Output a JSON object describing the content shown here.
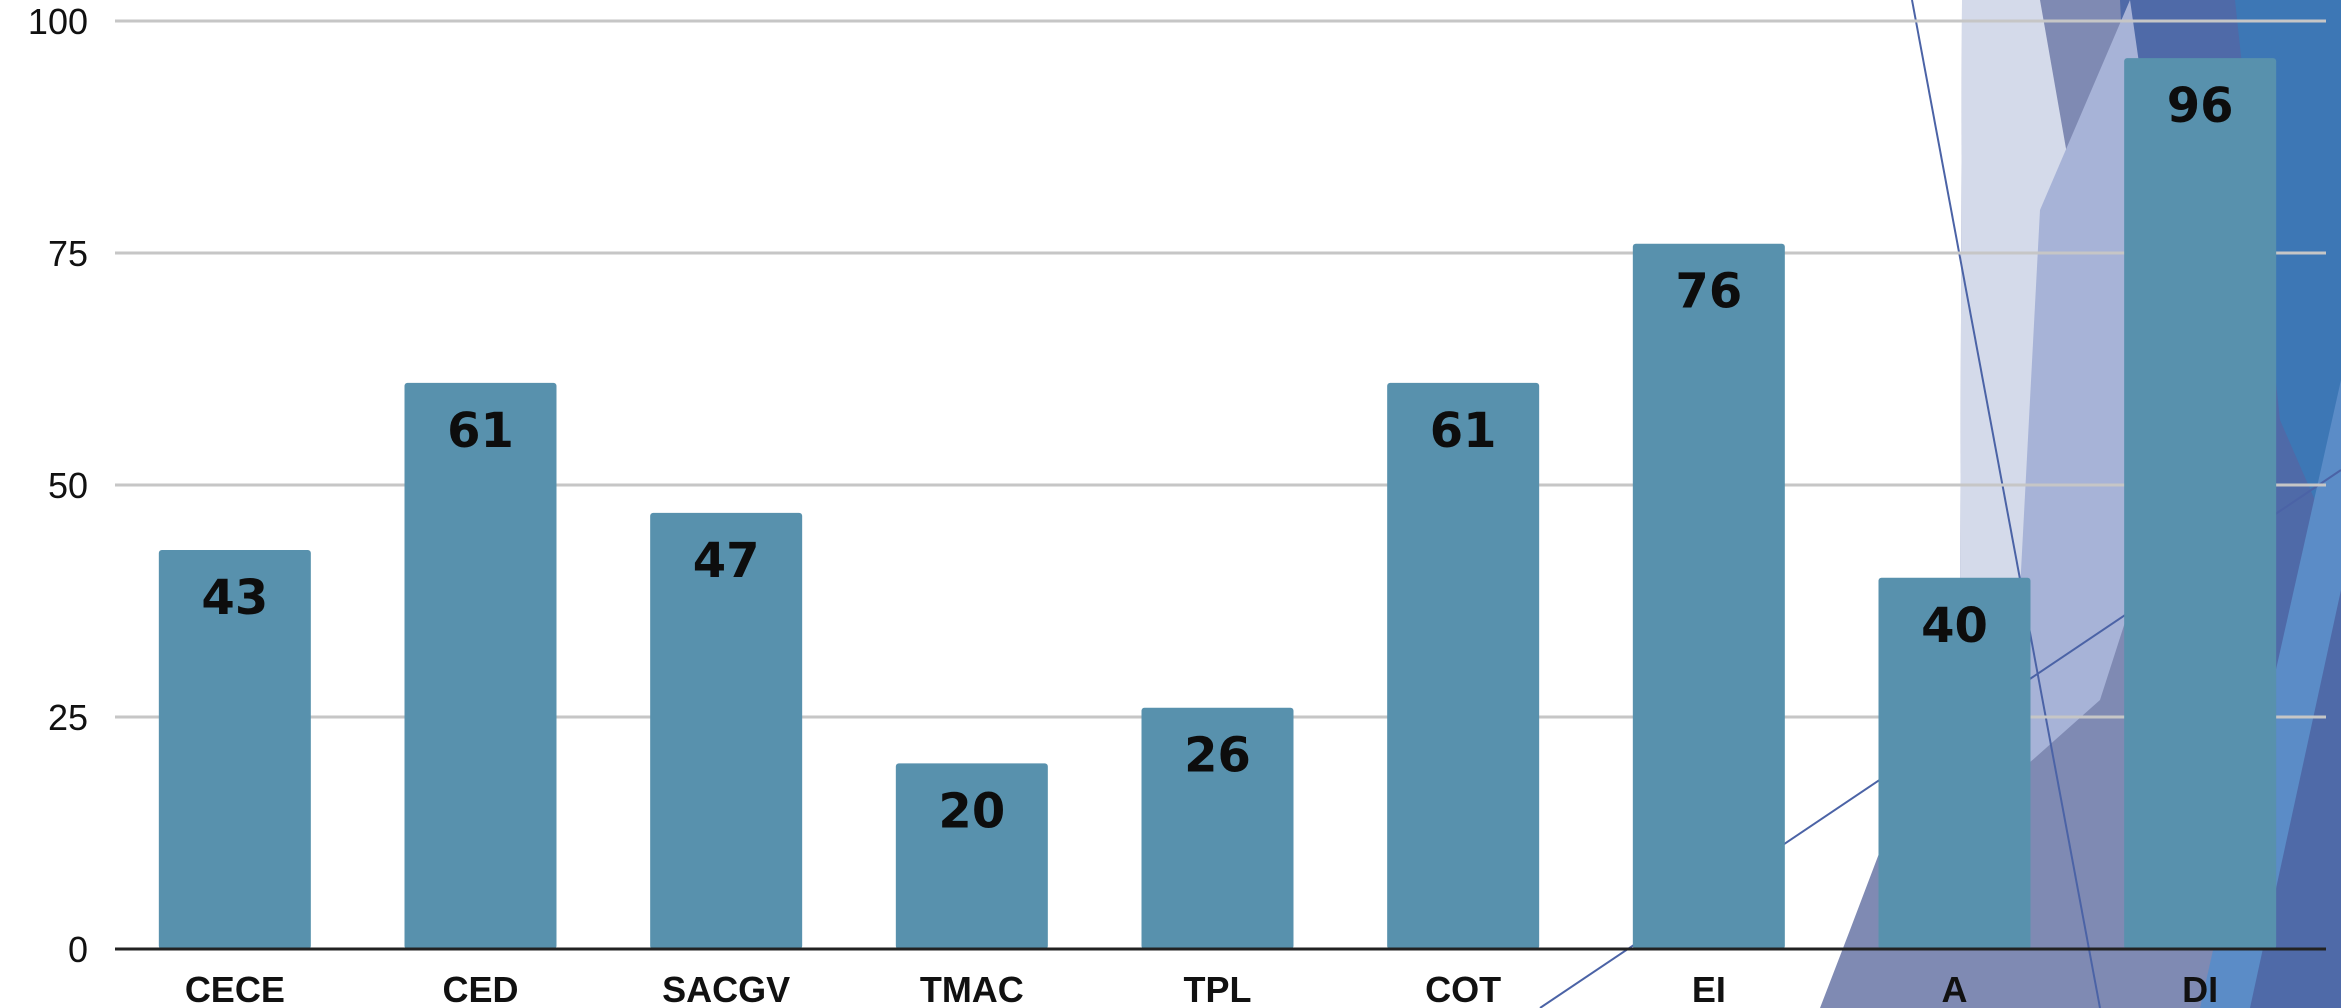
{
  "theme": {
    "bar_color": "#5891AD",
    "grid_color": "#C6C6C6",
    "axis_color": "#222222",
    "decor_colors": [
      "#7F8AB3",
      "#D4DAEA",
      "#4F6AA8",
      "#3D77B5",
      "#A7B3D7",
      "#5B8CC7",
      "#7B86BA"
    ]
  },
  "chart_data": {
    "type": "bar",
    "categories": [
      "CECE",
      "CED",
      "SACGV",
      "TMAC",
      "TPL",
      "COT",
      "EI",
      "A",
      "DI"
    ],
    "values": [
      43,
      61,
      47,
      20,
      26,
      61,
      76,
      40,
      96
    ],
    "ylim": [
      0,
      100
    ],
    "yticks": [
      0,
      25,
      50,
      75,
      100
    ],
    "grid": true,
    "data_labels": true,
    "legend": "none"
  }
}
